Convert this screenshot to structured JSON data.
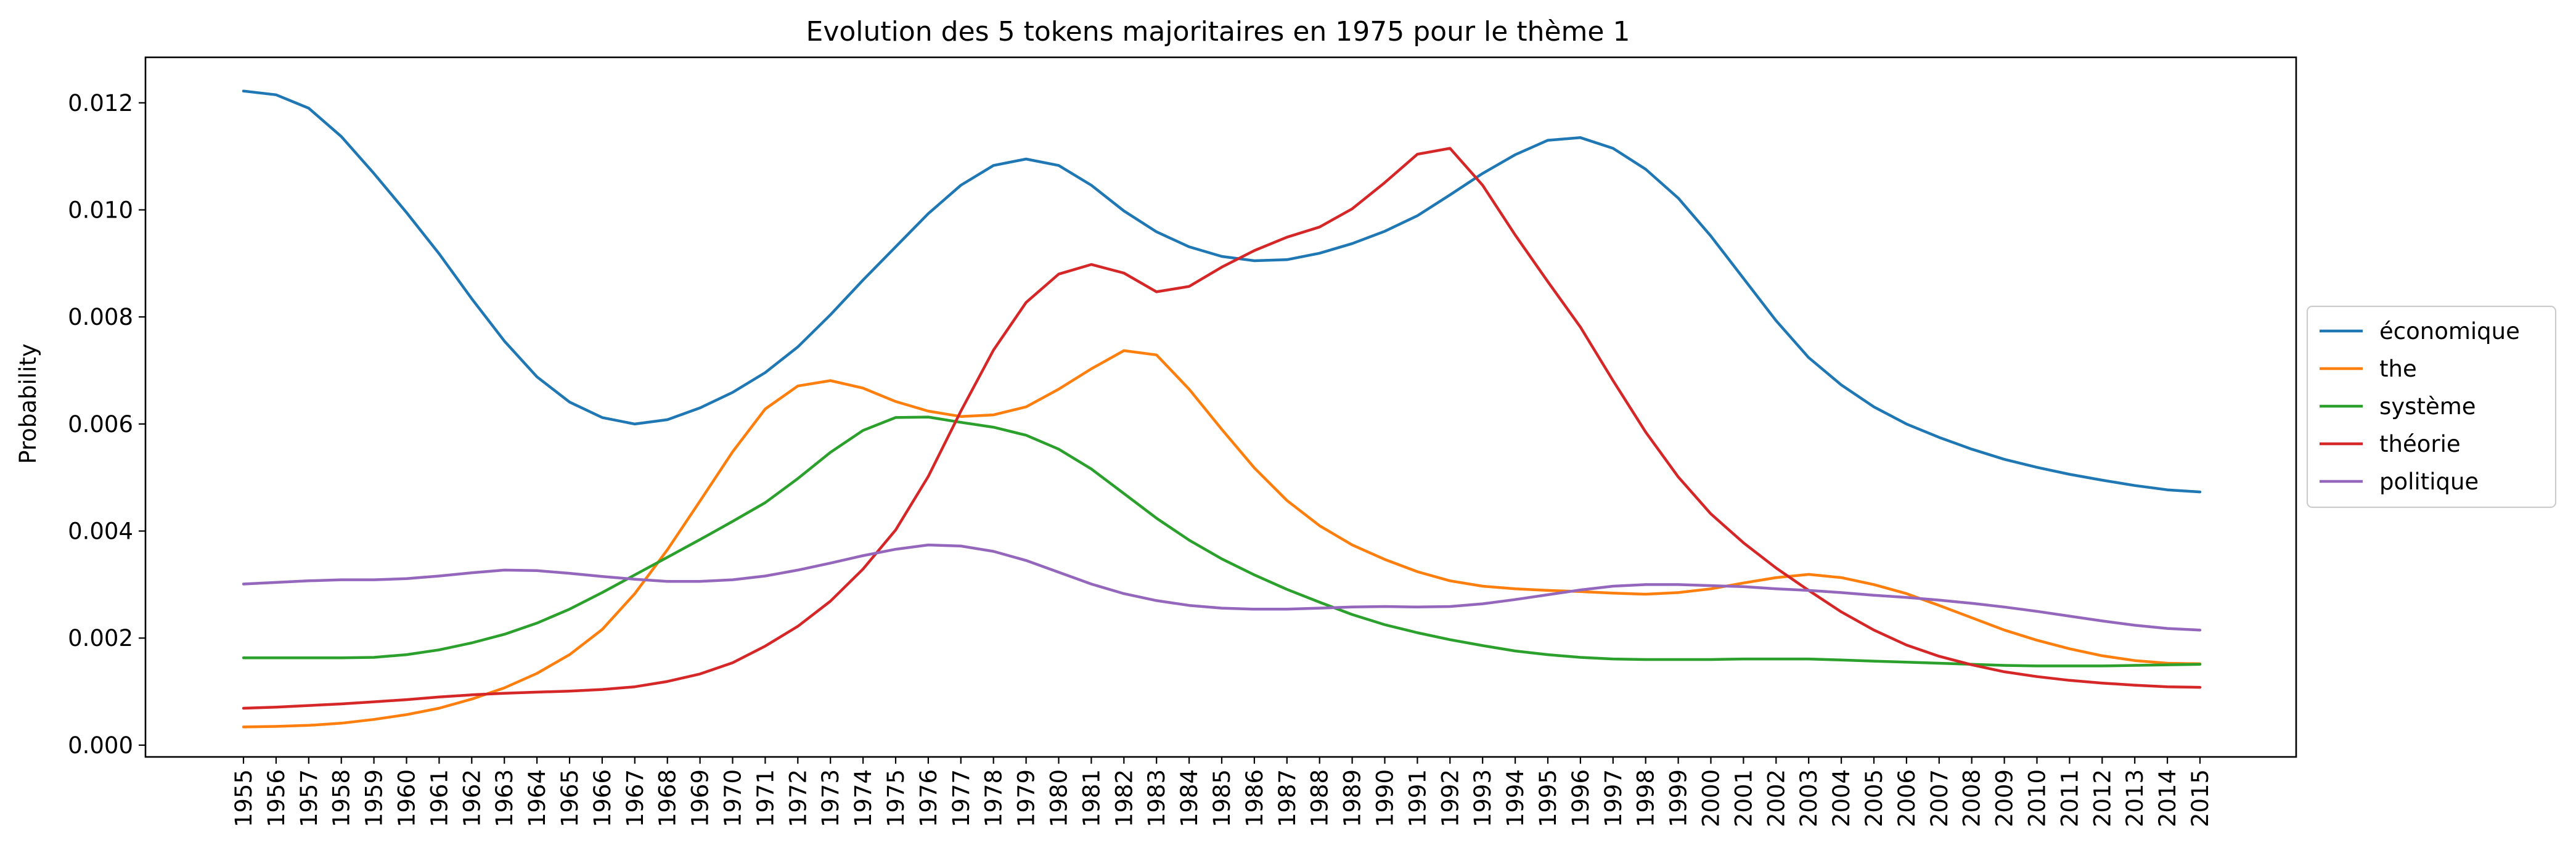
{
  "chart_data": {
    "type": "line",
    "title": "Evolution des 5 tokens majoritaires en 1975 pour le thème 1",
    "xlabel": "",
    "ylabel": "Probability",
    "ylim": [
      -0.00022,
      0.01285
    ],
    "yticks": [
      0.0,
      0.002,
      0.004,
      0.006,
      0.008,
      0.01,
      0.012
    ],
    "ytick_labels": [
      "0.000",
      "0.002",
      "0.004",
      "0.006",
      "0.008",
      "0.010",
      "0.012"
    ],
    "grid": false,
    "legend_position": "outside right, centered",
    "categories": [
      "1955",
      "1956",
      "1957",
      "1958",
      "1959",
      "1960",
      "1961",
      "1962",
      "1963",
      "1964",
      "1965",
      "1966",
      "1967",
      "1968",
      "1969",
      "1970",
      "1971",
      "1972",
      "1973",
      "1974",
      "1975",
      "1976",
      "1977",
      "1978",
      "1979",
      "1980",
      "1981",
      "1982",
      "1983",
      "1984",
      "1985",
      "1986",
      "1987",
      "1988",
      "1989",
      "1990",
      "1991",
      "1992",
      "1993",
      "1994",
      "1995",
      "1996",
      "1997",
      "1998",
      "1999",
      "2000",
      "2001",
      "2002",
      "2003",
      "2004",
      "2005",
      "2006",
      "2007",
      "2008",
      "2009",
      "2010",
      "2011",
      "2012",
      "2013",
      "2014",
      "2015"
    ],
    "series": [
      {
        "name": "économique",
        "color": "#1f77b4",
        "values": [
          0.01222,
          0.01215,
          0.0119,
          0.01137,
          0.01068,
          0.00995,
          0.00918,
          0.00834,
          0.00755,
          0.00688,
          0.00641,
          0.00612,
          0.006,
          0.00608,
          0.0063,
          0.00659,
          0.00696,
          0.00744,
          0.00804,
          0.00869,
          0.00931,
          0.00993,
          0.01046,
          0.01083,
          0.01095,
          0.01083,
          0.01046,
          0.00998,
          0.00959,
          0.00931,
          0.00913,
          0.00905,
          0.00907,
          0.00919,
          0.00937,
          0.0096,
          0.00989,
          0.01028,
          0.01068,
          0.01103,
          0.0113,
          0.01135,
          0.01115,
          0.01076,
          0.01022,
          0.00951,
          0.00872,
          0.00793,
          0.00724,
          0.00673,
          0.00632,
          0.006,
          0.00575,
          0.00553,
          0.00534,
          0.00519,
          0.00506,
          0.00495,
          0.00485,
          0.00477,
          0.00473
        ]
      },
      {
        "name": "the",
        "color": "#ff7f0e",
        "values": [
          0.00034,
          0.00035,
          0.00037,
          0.00041,
          0.00048,
          0.00057,
          0.00069,
          0.00086,
          0.00107,
          0.00134,
          0.00169,
          0.00216,
          0.00283,
          0.00365,
          0.00456,
          0.00548,
          0.00628,
          0.00671,
          0.00681,
          0.00667,
          0.00642,
          0.00624,
          0.00614,
          0.00617,
          0.00632,
          0.00665,
          0.00703,
          0.00737,
          0.00729,
          0.00665,
          0.0059,
          0.00518,
          0.00457,
          0.0041,
          0.00374,
          0.00347,
          0.00324,
          0.00307,
          0.00297,
          0.00292,
          0.00289,
          0.00287,
          0.00284,
          0.00282,
          0.00285,
          0.00292,
          0.00303,
          0.00313,
          0.00319,
          0.00313,
          0.003,
          0.00283,
          0.00261,
          0.00238,
          0.00215,
          0.00196,
          0.0018,
          0.00167,
          0.00158,
          0.00153,
          0.00152
        ]
      },
      {
        "name": "système",
        "color": "#2ca02c",
        "values": [
          0.00163,
          0.00163,
          0.00163,
          0.00163,
          0.00164,
          0.00169,
          0.00178,
          0.00191,
          0.00207,
          0.00228,
          0.00254,
          0.00285,
          0.00318,
          0.00351,
          0.00384,
          0.00418,
          0.00453,
          0.00498,
          0.00547,
          0.00588,
          0.00612,
          0.00613,
          0.00603,
          0.00594,
          0.00579,
          0.00553,
          0.00516,
          0.0047,
          0.00424,
          0.00383,
          0.00348,
          0.00318,
          0.00291,
          0.00267,
          0.00244,
          0.00225,
          0.0021,
          0.00197,
          0.00186,
          0.00176,
          0.00169,
          0.00164,
          0.00161,
          0.0016,
          0.0016,
          0.0016,
          0.00161,
          0.00161,
          0.00161,
          0.00159,
          0.00157,
          0.00155,
          0.00153,
          0.00151,
          0.00149,
          0.00148,
          0.00148,
          0.00148,
          0.00149,
          0.0015,
          0.00151
        ]
      },
      {
        "name": "théorie",
        "color": "#d62728",
        "values": [
          0.00069,
          0.00071,
          0.00074,
          0.00077,
          0.00081,
          0.00085,
          0.0009,
          0.00094,
          0.00097,
          0.00099,
          0.00101,
          0.00104,
          0.00109,
          0.00119,
          0.00133,
          0.00154,
          0.00185,
          0.00222,
          0.00269,
          0.00329,
          0.00402,
          0.00502,
          0.00624,
          0.00738,
          0.00827,
          0.0088,
          0.00898,
          0.00882,
          0.00847,
          0.00857,
          0.00893,
          0.00924,
          0.00949,
          0.00968,
          0.01002,
          0.01051,
          0.01104,
          0.01115,
          0.01046,
          0.00953,
          0.00866,
          0.00781,
          0.00681,
          0.00585,
          0.00501,
          0.00432,
          0.00378,
          0.00331,
          0.00289,
          0.00249,
          0.00215,
          0.00187,
          0.00166,
          0.0015,
          0.00137,
          0.00128,
          0.00121,
          0.00116,
          0.00112,
          0.00109,
          0.00108
        ]
      },
      {
        "name": "politique",
        "color": "#9467bd",
        "values": [
          0.00301,
          0.00304,
          0.00307,
          0.00309,
          0.00309,
          0.00311,
          0.00316,
          0.00322,
          0.00327,
          0.00326,
          0.00321,
          0.00315,
          0.0031,
          0.00306,
          0.00306,
          0.00309,
          0.00316,
          0.00327,
          0.0034,
          0.00354,
          0.00366,
          0.00374,
          0.00372,
          0.00362,
          0.00345,
          0.00323,
          0.00301,
          0.00283,
          0.0027,
          0.00261,
          0.00256,
          0.00254,
          0.00254,
          0.00256,
          0.00258,
          0.00259,
          0.00258,
          0.00259,
          0.00264,
          0.00272,
          0.00281,
          0.0029,
          0.00297,
          0.003,
          0.003,
          0.00298,
          0.00296,
          0.00292,
          0.00289,
          0.00285,
          0.0028,
          0.00276,
          0.00271,
          0.00265,
          0.00258,
          0.0025,
          0.00241,
          0.00232,
          0.00224,
          0.00218,
          0.00215
        ]
      }
    ]
  }
}
